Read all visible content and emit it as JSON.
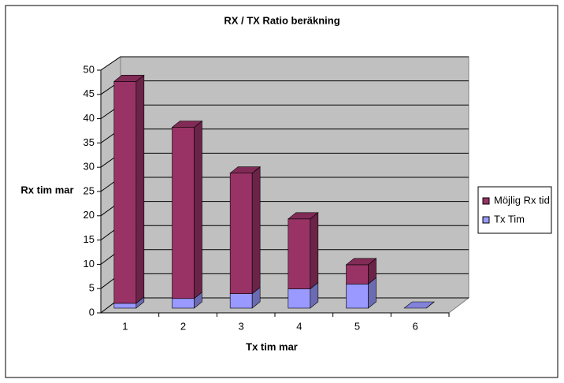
{
  "chart_data": {
    "type": "bar3d-stacked",
    "title": "RX / TX Ratio beräkning",
    "x_label": "Tx tim mar",
    "y_label": "Rx tim mar",
    "categories": [
      "1",
      "2",
      "3",
      "4",
      "5",
      "6"
    ],
    "series": [
      {
        "name": "Möjlig Rx tid",
        "color": "#993366",
        "values": [
          46,
          35.5,
          25,
          14.5,
          4,
          0
        ]
      },
      {
        "name": "Tx Tim",
        "color": "#9999ff",
        "values": [
          1,
          2,
          3,
          4,
          5,
          0
        ]
      }
    ],
    "ylim": [
      0,
      50
    ],
    "yticks": [
      0,
      5,
      10,
      15,
      20,
      25,
      30,
      35,
      40,
      45,
      50
    ],
    "grid": true,
    "legend": "right"
  }
}
